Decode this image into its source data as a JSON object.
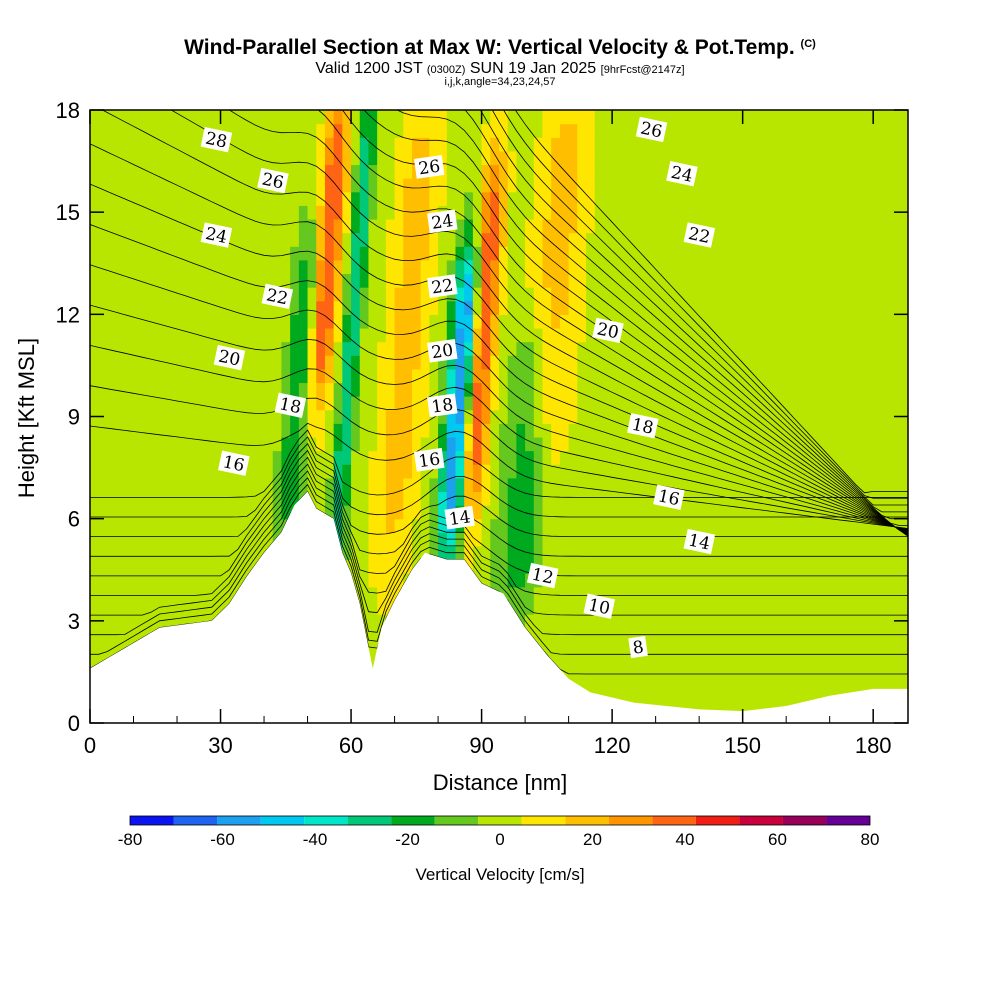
{
  "title": {
    "main": "Wind-Parallel Section at Max W: Vertical Velocity & Pot.Temp.",
    "mark": "(C)",
    "valid_a": "Valid 1200 JST",
    "valid_b": "(0300Z)",
    "valid_c": "SUN 19 Jan 2025",
    "valid_d": "[9hrFcst@2147z]",
    "params": "i,j,k,angle=34,23,24,57"
  },
  "chart_data": {
    "type": "heatmap",
    "xlabel": "Distance [nm]",
    "ylabel": "Height [Kft MSL]",
    "xlim": [
      0,
      188
    ],
    "ylim": [
      0,
      18
    ],
    "x_ticks": [
      0,
      30,
      60,
      90,
      120,
      150,
      180
    ],
    "y_ticks": [
      0,
      3,
      6,
      9,
      12,
      15,
      18
    ],
    "colorbar": {
      "label": "Vertical Velocity [cm/s]",
      "ticks": [
        -80,
        -60,
        -40,
        -20,
        0,
        20,
        40,
        60,
        80
      ],
      "bins": [
        -80,
        -70,
        -60,
        -50,
        -40,
        -30,
        -20,
        -10,
        0,
        10,
        20,
        30,
        40,
        50,
        60,
        70,
        80
      ],
      "colors": [
        "#0a14f0",
        "#1e64f0",
        "#1ea0f0",
        "#00c8f0",
        "#00e6c8",
        "#00c878",
        "#00aa1e",
        "#64c81e",
        "#b9e600",
        "#ffe600",
        "#ffbe00",
        "#ff9600",
        "#ff6414",
        "#f01e14",
        "#c8003c",
        "#96005a",
        "#640096"
      ]
    },
    "terrain_profile": [
      [
        0,
        1.6
      ],
      [
        4,
        1.9
      ],
      [
        8,
        2.2
      ],
      [
        12,
        2.5
      ],
      [
        16,
        2.8
      ],
      [
        28,
        3.0
      ],
      [
        32,
        3.5
      ],
      [
        36,
        4.3
      ],
      [
        40,
        5.0
      ],
      [
        44,
        5.6
      ],
      [
        47,
        6.4
      ],
      [
        50,
        6.8
      ],
      [
        52,
        6.3
      ],
      [
        56,
        6.0
      ],
      [
        58,
        5.0
      ],
      [
        60,
        4.4
      ],
      [
        62,
        3.5
      ],
      [
        65,
        1.6
      ],
      [
        67,
        2.8
      ],
      [
        70,
        3.6
      ],
      [
        74,
        4.5
      ],
      [
        77,
        5.0
      ],
      [
        82,
        4.8
      ],
      [
        86,
        4.8
      ],
      [
        90,
        4.1
      ],
      [
        95,
        3.8
      ],
      [
        100,
        2.8
      ],
      [
        105,
        2.0
      ],
      [
        110,
        1.3
      ],
      [
        115,
        0.9
      ],
      [
        125,
        0.6
      ],
      [
        140,
        0.4
      ],
      [
        150,
        0.35
      ],
      [
        160,
        0.5
      ],
      [
        170,
        0.8
      ],
      [
        180,
        1.0
      ],
      [
        188,
        1.0
      ]
    ],
    "w_features": [
      {
        "x": 85,
        "y0": 5.5,
        "y1": 13.5,
        "w": -70,
        "halfwidth": 3
      },
      {
        "x": 90,
        "y0": 6.5,
        "y1": 16,
        "w": 50,
        "halfwidth": 3
      },
      {
        "x": 100,
        "y0": 4,
        "y1": 11,
        "w": -25,
        "halfwidth": 5
      },
      {
        "x": 107,
        "y0": 8,
        "y1": 18,
        "w": 20,
        "halfwidth": 6
      },
      {
        "x": 55,
        "y0": 10,
        "y1": 18,
        "w": 45,
        "halfwidth": 3
      },
      {
        "x": 60,
        "y0": 4,
        "y1": 18,
        "w": -35,
        "halfwidth": 2
      },
      {
        "x": 73,
        "y0": 5,
        "y1": 18,
        "w": 20,
        "halfwidth": 5
      },
      {
        "x": 48,
        "y0": 6,
        "y1": 14,
        "w": -25,
        "halfwidth": 3
      }
    ],
    "theta_contours": [
      {
        "label": "8",
        "label_xy": [
          126,
          2.2
        ]
      },
      {
        "label": "10",
        "label_xy": [
          117,
          3.4
        ]
      },
      {
        "label": "12",
        "label_xy": [
          104,
          4.3
        ]
      },
      {
        "label": "14",
        "label_xy": [
          85,
          6.0
        ]
      },
      {
        "label": "14",
        "label_xy": [
          140,
          5.3
        ]
      },
      {
        "label": "16",
        "label_xy": [
          33,
          7.6
        ]
      },
      {
        "label": "16",
        "label_xy": [
          78,
          7.7
        ]
      },
      {
        "label": "16",
        "label_xy": [
          133,
          6.6
        ]
      },
      {
        "label": "18",
        "label_xy": [
          46,
          9.3
        ]
      },
      {
        "label": "18",
        "label_xy": [
          81,
          9.3
        ]
      },
      {
        "label": "18",
        "label_xy": [
          127,
          8.7
        ]
      },
      {
        "label": "20",
        "label_xy": [
          32,
          10.7
        ]
      },
      {
        "label": "20",
        "label_xy": [
          81,
          10.9
        ]
      },
      {
        "label": "20",
        "label_xy": [
          119,
          11.5
        ]
      },
      {
        "label": "22",
        "label_xy": [
          43,
          12.5
        ]
      },
      {
        "label": "22",
        "label_xy": [
          81,
          12.8
        ]
      },
      {
        "label": "22",
        "label_xy": [
          140,
          14.3
        ]
      },
      {
        "label": "24",
        "label_xy": [
          29,
          14.3
        ]
      },
      {
        "label": "24",
        "label_xy": [
          81,
          14.7
        ]
      },
      {
        "label": "24",
        "label_xy": [
          136,
          16.1
        ]
      },
      {
        "label": "26",
        "label_xy": [
          42,
          15.9
        ]
      },
      {
        "label": "26",
        "label_xy": [
          78,
          16.3
        ]
      },
      {
        "label": "26",
        "label_xy": [
          129,
          17.4
        ]
      },
      {
        "label": "28",
        "label_xy": [
          29,
          17.1
        ]
      }
    ]
  }
}
